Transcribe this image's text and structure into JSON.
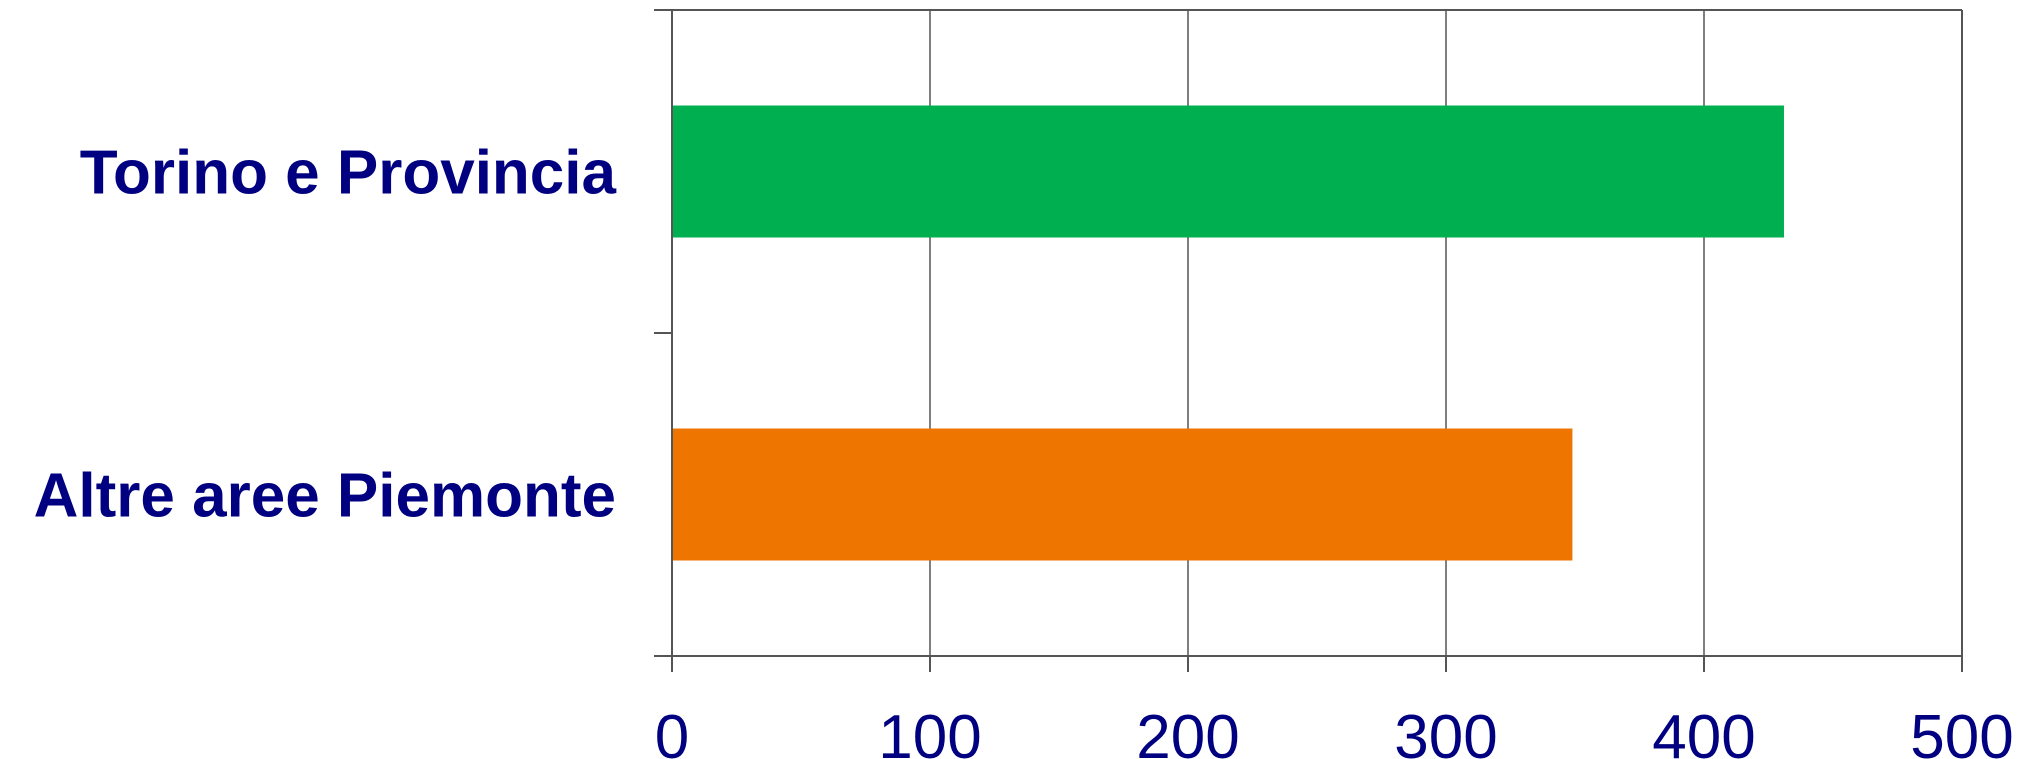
{
  "chart_data": {
    "type": "bar",
    "orientation": "horizontal",
    "categories": [
      "Torino e Provincia",
      "Altre aree Piemonte"
    ],
    "values": [
      431,
      349
    ],
    "xlim": [
      0,
      500
    ],
    "xticks": [
      "0",
      "100",
      "200",
      "300",
      "400",
      "500"
    ],
    "title": "",
    "xlabel": "",
    "ylabel": "",
    "grid": "vertical",
    "legend": "none",
    "colors": {
      "bars": [
        "#00b050",
        "#ee7500"
      ],
      "text": "#000080",
      "grid": "#555555",
      "axis": "#555555"
    }
  }
}
